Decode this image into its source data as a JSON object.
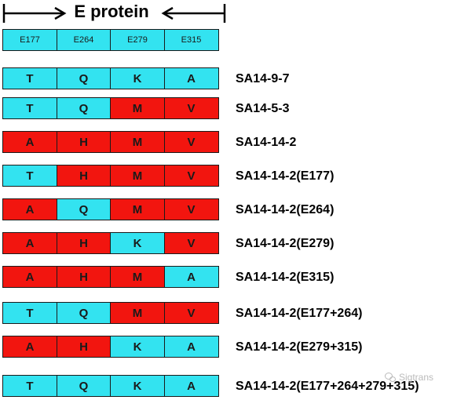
{
  "header": {
    "title": "E protein",
    "positions": [
      "E177",
      "E264",
      "E279",
      "E315"
    ]
  },
  "rows": [
    {
      "label": "SA14-9-7",
      "cells": [
        {
          "aa": "T",
          "color": "cyan"
        },
        {
          "aa": "Q",
          "color": "cyan"
        },
        {
          "aa": "K",
          "color": "cyan"
        },
        {
          "aa": "A",
          "color": "cyan"
        }
      ]
    },
    {
      "label": "SA14-5-3",
      "cells": [
        {
          "aa": "T",
          "color": "cyan"
        },
        {
          "aa": "Q",
          "color": "cyan"
        },
        {
          "aa": "M",
          "color": "red"
        },
        {
          "aa": "V",
          "color": "red"
        }
      ]
    },
    {
      "label": "SA14-14-2",
      "cells": [
        {
          "aa": "A",
          "color": "red"
        },
        {
          "aa": "H",
          "color": "red"
        },
        {
          "aa": "M",
          "color": "red"
        },
        {
          "aa": "V",
          "color": "red"
        }
      ]
    },
    {
      "label": "SA14-14-2(E177)",
      "cells": [
        {
          "aa": "T",
          "color": "cyan"
        },
        {
          "aa": "H",
          "color": "red"
        },
        {
          "aa": "M",
          "color": "red"
        },
        {
          "aa": "V",
          "color": "red"
        }
      ]
    },
    {
      "label": "SA14-14-2(E264)",
      "cells": [
        {
          "aa": "A",
          "color": "red"
        },
        {
          "aa": "Q",
          "color": "cyan"
        },
        {
          "aa": "M",
          "color": "red"
        },
        {
          "aa": "V",
          "color": "red"
        }
      ]
    },
    {
      "label": "SA14-14-2(E279)",
      "cells": [
        {
          "aa": "A",
          "color": "red"
        },
        {
          "aa": "H",
          "color": "red"
        },
        {
          "aa": "K",
          "color": "cyan"
        },
        {
          "aa": "V",
          "color": "red"
        }
      ]
    },
    {
      "label": "SA14-14-2(E315)",
      "cells": [
        {
          "aa": "A",
          "color": "red"
        },
        {
          "aa": "H",
          "color": "red"
        },
        {
          "aa": "M",
          "color": "red"
        },
        {
          "aa": "A",
          "color": "cyan"
        }
      ]
    },
    {
      "label": "SA14-14-2(E177+264)",
      "cells": [
        {
          "aa": "T",
          "color": "cyan"
        },
        {
          "aa": "Q",
          "color": "cyan"
        },
        {
          "aa": "M",
          "color": "red"
        },
        {
          "aa": "V",
          "color": "red"
        }
      ]
    },
    {
      "label": "SA14-14-2(E279+315)",
      "cells": [
        {
          "aa": "A",
          "color": "red"
        },
        {
          "aa": "H",
          "color": "red"
        },
        {
          "aa": "K",
          "color": "cyan"
        },
        {
          "aa": "A",
          "color": "cyan"
        }
      ]
    },
    {
      "label": "SA14-14-2(E177+264+279+315)",
      "cells": [
        {
          "aa": "T",
          "color": "cyan"
        },
        {
          "aa": "Q",
          "color": "cyan"
        },
        {
          "aa": "K",
          "color": "cyan"
        },
        {
          "aa": "A",
          "color": "cyan"
        }
      ]
    }
  ],
  "colors": {
    "cyan": "#33e3f0",
    "red": "#f2150f"
  },
  "watermark": {
    "text": "Sigtrans",
    "icon": "wechat-icon"
  }
}
